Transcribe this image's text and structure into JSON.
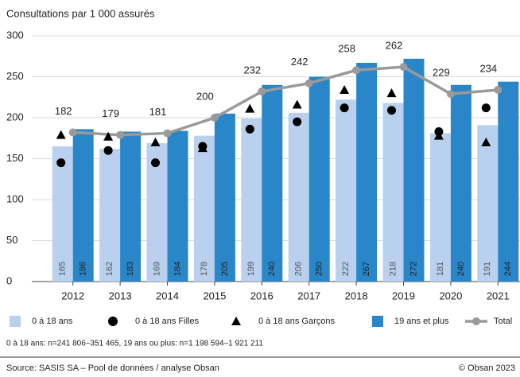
{
  "chart_data": {
    "type": "bar",
    "title": "Consultations par 1 000 assurés",
    "categories": [
      "2012",
      "2013",
      "2014",
      "2015",
      "2016",
      "2017",
      "2018",
      "2019",
      "2020",
      "2021"
    ],
    "series": [
      {
        "name": "0 à 18 ans",
        "type": "bar",
        "color": "#b9d1ee",
        "values": [
          165,
          162,
          169,
          178,
          199,
          206,
          222,
          218,
          181,
          191
        ]
      },
      {
        "name": "0 à 18 ans Filles",
        "type": "scatter",
        "marker": "circle",
        "color": "#000000",
        "values": [
          145,
          160,
          145,
          165,
          186,
          195,
          212,
          209,
          183,
          212
        ]
      },
      {
        "name": "0 à 18 ans Garçons",
        "type": "scatter",
        "marker": "triangle",
        "color": "#000000",
        "values": [
          179,
          177,
          170,
          163,
          211,
          216,
          234,
          230,
          178,
          170
        ]
      },
      {
        "name": "19 ans et plus",
        "type": "bar",
        "color": "#2986c9",
        "values": [
          186,
          183,
          184,
          205,
          240,
          250,
          267,
          272,
          240,
          244
        ]
      },
      {
        "name": "Total",
        "type": "line",
        "color": "#9a9a9a",
        "values": [
          182,
          179,
          181,
          200,
          232,
          242,
          258,
          262,
          229,
          234
        ]
      }
    ],
    "ylim": [
      0,
      300
    ],
    "yticks": [
      0,
      50,
      100,
      150,
      200,
      250,
      300
    ],
    "grid": true,
    "note": "0 à 18 ans: n=241 806–351 465, 19 ans ou plus: n=1 198 594–1 921 211",
    "source": "Source: SASIS SA – Pool de données / analyse Obsan",
    "copyright": "© Obsan 2023"
  }
}
